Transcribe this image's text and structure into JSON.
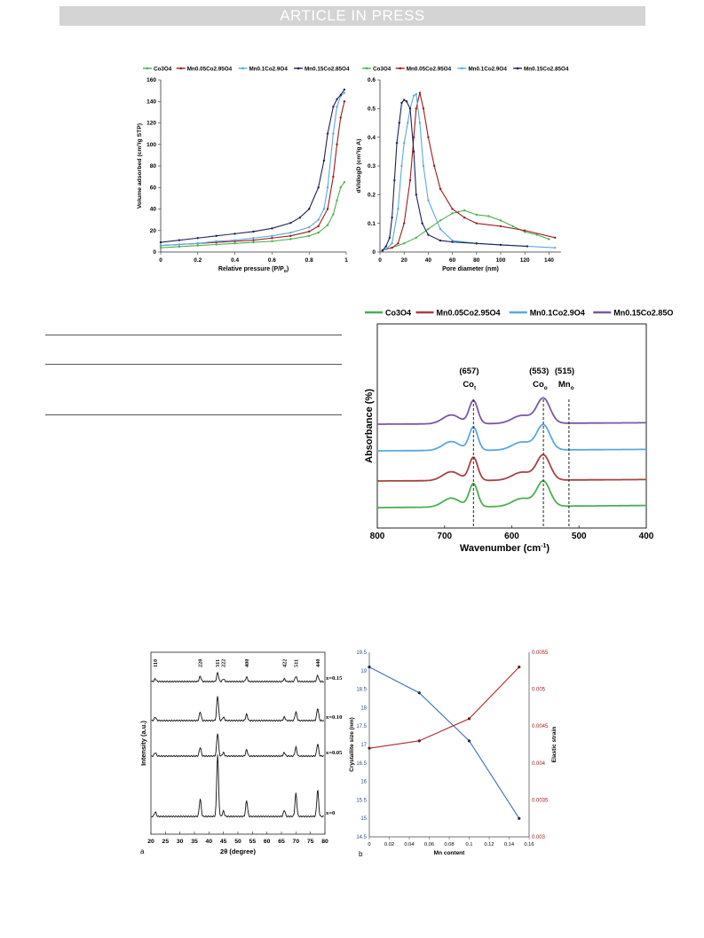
{
  "banner": "ARTICLE IN PRESS",
  "colors": {
    "green": "#4caf50",
    "red": "#9c1c1c",
    "blue": "#5aa8de",
    "navy": "#1c2355",
    "purple": "#7b57a6",
    "ftir_red": "#a84242"
  },
  "chart_data": [
    {
      "type": "line",
      "id": "isotherm",
      "xlabel": "Relative pressure (P/P",
      "xlabel_sub": "o",
      "xlabel_end": ")",
      "ylabel": "Volume adsorbed (cm³/g STP)",
      "xlim": [
        0,
        1
      ],
      "ylim": [
        0,
        160
      ],
      "xticks": [
        "0",
        "0.2",
        "0.4",
        "0.6",
        "0.8",
        "1"
      ],
      "yticks": [
        "0",
        "20",
        "40",
        "60",
        "80",
        "100",
        "120",
        "140",
        "160"
      ],
      "legend": [
        "Co3O4",
        "Mn0.05Co2.95O4",
        "Mn0.1Co2.9O4",
        "Mn0.15Co2.85O4"
      ],
      "series": [
        {
          "name": "Co3O4",
          "color": "#4caf50",
          "x": [
            0,
            0.1,
            0.2,
            0.3,
            0.4,
            0.5,
            0.6,
            0.7,
            0.8,
            0.85,
            0.9,
            0.93,
            0.95,
            0.97,
            0.99
          ],
          "y": [
            4,
            5,
            6,
            7,
            8,
            9,
            10,
            12,
            15,
            18,
            25,
            35,
            48,
            60,
            65
          ]
        },
        {
          "name": "Mn0.05Co2.95O4",
          "color": "#9c1c1c",
          "x": [
            0,
            0.1,
            0.2,
            0.3,
            0.4,
            0.5,
            0.6,
            0.7,
            0.8,
            0.85,
            0.9,
            0.93,
            0.95,
            0.97,
            0.99
          ],
          "y": [
            6,
            7,
            8,
            9,
            10,
            11,
            13,
            15,
            19,
            24,
            40,
            70,
            100,
            125,
            140
          ]
        },
        {
          "name": "Mn0.1Co2.9O4",
          "color": "#5aa8de",
          "x": [
            0,
            0.1,
            0.2,
            0.3,
            0.4,
            0.5,
            0.6,
            0.7,
            0.8,
            0.85,
            0.88,
            0.9,
            0.93,
            0.95,
            0.97,
            0.99
          ],
          "y": [
            6,
            7,
            8,
            10,
            11,
            13,
            15,
            18,
            23,
            30,
            40,
            60,
            110,
            135,
            145,
            148
          ]
        },
        {
          "name": "Mn0.15Co2.85O4",
          "color": "#1c2355",
          "x": [
            0,
            0.1,
            0.2,
            0.3,
            0.4,
            0.5,
            0.6,
            0.7,
            0.75,
            0.8,
            0.85,
            0.88,
            0.9,
            0.93,
            0.95,
            0.97,
            0.99
          ],
          "y": [
            9,
            11,
            13,
            15,
            17,
            19,
            22,
            27,
            32,
            40,
            60,
            85,
            110,
            135,
            142,
            146,
            151
          ]
        }
      ]
    },
    {
      "type": "line",
      "id": "pore",
      "xlabel": "Pore diameter (nm)",
      "ylabel": "dV/dlogD (cm³/g A)",
      "xlim": [
        0,
        150
      ],
      "ylim": [
        0,
        0.6
      ],
      "xticks": [
        "0",
        "20",
        "40",
        "60",
        "80",
        "100",
        "120",
        "140"
      ],
      "yticks": [
        "0",
        "0.1",
        "0.2",
        "0.3",
        "0.4",
        "0.5",
        "0.6"
      ],
      "legend": [
        "Co3O4",
        "Mn0.05Co2.95O4",
        "Mn0.1Co2.9O4",
        "Mn0.15Co2.85O4"
      ],
      "series": [
        {
          "name": "Co3O4",
          "color": "#4caf50",
          "x": [
            2,
            5,
            10,
            20,
            30,
            40,
            50,
            60,
            65,
            70,
            80,
            90,
            100,
            110,
            120,
            130,
            140
          ],
          "y": [
            0.005,
            0.01,
            0.015,
            0.03,
            0.05,
            0.08,
            0.11,
            0.135,
            0.14,
            0.145,
            0.13,
            0.125,
            0.11,
            0.09,
            0.07,
            0.06,
            0.045
          ]
        },
        {
          "name": "Mn0.05Co2.95O4",
          "color": "#9c1c1c",
          "x": [
            2,
            5,
            10,
            15,
            20,
            25,
            28,
            30,
            33,
            36,
            40,
            45,
            50,
            60,
            70,
            80,
            100,
            120,
            145
          ],
          "y": [
            0.005,
            0.01,
            0.015,
            0.03,
            0.1,
            0.25,
            0.4,
            0.5,
            0.555,
            0.5,
            0.4,
            0.3,
            0.22,
            0.15,
            0.12,
            0.1,
            0.09,
            0.075,
            0.05
          ]
        },
        {
          "name": "Mn0.1Co2.9O4",
          "color": "#5aa8de",
          "x": [
            2,
            5,
            10,
            15,
            18,
            20,
            23,
            25,
            28,
            30,
            33,
            36,
            40,
            50,
            60,
            80,
            100,
            145
          ],
          "y": [
            0.005,
            0.01,
            0.03,
            0.15,
            0.3,
            0.38,
            0.45,
            0.5,
            0.545,
            0.55,
            0.45,
            0.3,
            0.18,
            0.08,
            0.04,
            0.03,
            0.025,
            0.015
          ]
        },
        {
          "name": "Mn0.15Co2.85O4",
          "color": "#1c2355",
          "x": [
            2,
            5,
            8,
            10,
            12,
            14,
            16,
            18,
            20,
            22,
            25,
            28,
            30,
            35,
            40,
            50,
            60,
            80,
            100,
            122
          ],
          "y": [
            0.005,
            0.02,
            0.05,
            0.12,
            0.25,
            0.38,
            0.45,
            0.52,
            0.53,
            0.525,
            0.5,
            0.35,
            0.2,
            0.1,
            0.06,
            0.04,
            0.035,
            0.03,
            0.025,
            0.02
          ]
        }
      ]
    },
    {
      "type": "line",
      "id": "ftir",
      "xlabel": "Wavenumber (cm",
      "xlabel_sup": "-1",
      "xlabel_end": ")",
      "ylabel": "Absorbance (%)",
      "xlim": [
        800,
        400
      ],
      "xticks": [
        "800",
        "700",
        "600",
        "500",
        "400"
      ],
      "legend": [
        "Co3O4",
        "Mn0.05Co2.95O4",
        "Mn0.1Co2.9O4",
        "Mn0.15Co2.85O"
      ],
      "annotations": [
        {
          "num": "(657)",
          "base": "Co",
          "sub": "t",
          "x": 657
        },
        {
          "num": "(553)",
          "base": "Co",
          "sub": "o",
          "x": 553
        },
        {
          "num": "(515)",
          "base": "Mn",
          "sub": "o",
          "x": 515
        }
      ],
      "series": [
        {
          "name": "Co3O4",
          "color": "#4caf50"
        },
        {
          "name": "Mn0.05Co2.95O4",
          "color": "#a84242"
        },
        {
          "name": "Mn0.1Co2.9O4",
          "color": "#5aa8de"
        },
        {
          "name": "Mn0.15Co2.85O",
          "color": "#7b57a6"
        }
      ]
    },
    {
      "type": "line",
      "id": "xrd",
      "xlabel": "2θ (degree)",
      "ylabel": "Intensity (a.u.)",
      "xlim": [
        20,
        80
      ],
      "xticks": [
        "20",
        "25",
        "30",
        "35",
        "40",
        "45",
        "50",
        "55",
        "60",
        "65",
        "70",
        "75",
        "80"
      ],
      "peaks": [
        {
          "label": "110",
          "x": 21.5
        },
        {
          "label": "220",
          "x": 37
        },
        {
          "label": "311",
          "x": 43
        },
        {
          "label": "222",
          "x": 45
        },
        {
          "label": "400",
          "x": 53
        },
        {
          "label": "422",
          "x": 66
        },
        {
          "label": "511",
          "x": 70
        },
        {
          "label": "440",
          "x": 77.5
        }
      ],
      "series": [
        {
          "name": "x=0.15"
        },
        {
          "name": "x=0.10"
        },
        {
          "name": "x=0.05"
        },
        {
          "name": "x=0"
        }
      ],
      "panel_label": "a"
    },
    {
      "type": "line",
      "id": "crystallite",
      "xlabel": "Mn content",
      "ylabel": "Crystallite size (nm)",
      "ylabel2": "Elastic strain",
      "xlim": [
        0,
        0.16
      ],
      "ylim": [
        14.5,
        19.5
      ],
      "ylim2": [
        0.003,
        0.0055
      ],
      "xticks": [
        "0",
        "0.02",
        "0.04",
        "0.06",
        "0.08",
        "0.1",
        "0.12",
        "0.14",
        "0.16"
      ],
      "yticks": [
        "14.5",
        "15",
        "15.5",
        "16",
        "16.5",
        "17",
        "17.5",
        "18",
        "18.5",
        "19",
        "19.5"
      ],
      "yticks2": [
        "0.003",
        "0.0035",
        "0.004",
        "0.0045",
        "0.005",
        "0.0055"
      ],
      "series": [
        {
          "name": "Crystallite size",
          "color": "#3a6fb8",
          "x": [
            0,
            0.05,
            0.1,
            0.15
          ],
          "y": [
            19.1,
            18.4,
            17.1,
            15.0
          ]
        },
        {
          "name": "Elastic strain",
          "color": "#b02a2a",
          "x": [
            0,
            0.05,
            0.1,
            0.15
          ],
          "y": [
            0.0042,
            0.0043,
            0.0046,
            0.0053
          ]
        }
      ],
      "panel_label": "b"
    }
  ]
}
